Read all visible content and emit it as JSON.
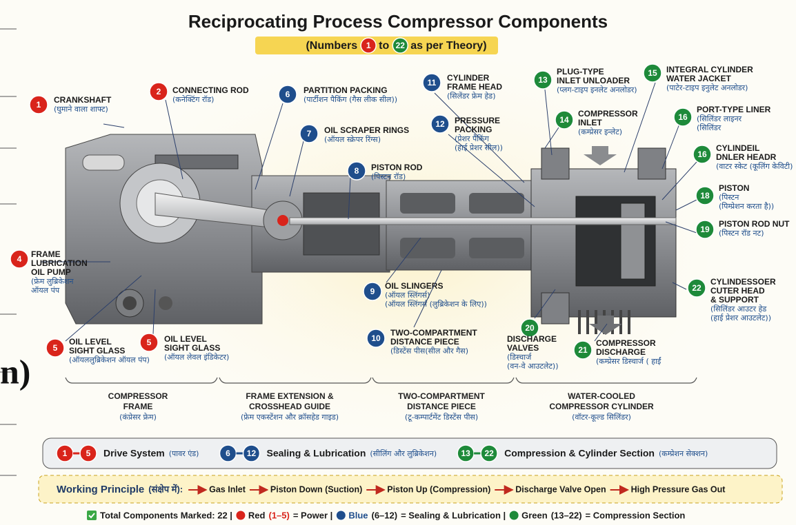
{
  "header": {
    "title": "Reciprocating Process Compressor Components",
    "subtitle": [
      {
        "text": "(Numbers"
      },
      {
        "badge": "1",
        "color": "#d9241b"
      },
      {
        "text": "to"
      },
      {
        "badge": "22",
        "color": "#1e8a3a"
      },
      {
        "text": "as per Theory)"
      }
    ]
  },
  "fragment": "n)",
  "components": [
    {
      "number": "1",
      "color": "#d9241b",
      "label": [
        "CRANKSHAFT"
      ],
      "hindi": [
        "(घुमाने वाला शाफ्ट)"
      ]
    },
    {
      "number": "2",
      "color": "#d9241b",
      "label": [
        "CONNECTING ROD"
      ],
      "hindi": [
        "(कनेक्टिंग रॉड)"
      ]
    },
    {
      "number": "4",
      "color": "#d9241b",
      "label": [
        "FRAME",
        "LUBRICATION",
        "OIL PUMP"
      ],
      "hindi": [
        "(फ्रेम लुब्रिकेशन",
        "ऑयल पंप"
      ]
    },
    {
      "number": "5",
      "color": "#d9241b",
      "label": [
        "OIL LEVEL",
        "SIGHT GLASS"
      ],
      "hindi": [
        "(ऑयललुब्रिकेशन ऑयल पंप)"
      ]
    },
    {
      "number": "5",
      "color": "#d9241b",
      "label": [
        "OIL LEVEL",
        "SIGHT GLASS"
      ],
      "hindi": [
        "(ऑयल लेवल इंडिकेटर)"
      ]
    },
    {
      "number": "6",
      "color": "#1f4e8c",
      "label": [
        "PARTITION PACKING"
      ],
      "hindi": [
        "(पार्टीशन पैकिंग (गैस लीक सील))"
      ]
    },
    {
      "number": "7",
      "color": "#1f4e8c",
      "label": [
        "OIL SCRAPER RINGS"
      ],
      "hindi": [
        "(ऑयल स्क्रेपर रिंग्स)"
      ]
    },
    {
      "number": "8",
      "color": "#1f4e8c",
      "label": [
        "PISTON ROD"
      ],
      "hindi": [
        "(पिस्टन रॉड)"
      ]
    },
    {
      "number": "9",
      "color": "#1f4e8c",
      "label": [
        "OIL SLINGERS"
      ],
      "hindi": [
        "(ऑयल स्लिंगर्स)",
        "(ऑयल स्लिंगर्स (लुब्रिकेशन के लिए))"
      ]
    },
    {
      "number": "10",
      "color": "#1f4e8c",
      "label": [
        "TWO-COMPARTMENT",
        "DISTANCE PIECE"
      ],
      "hindi": [
        "(डिस्टेंस पीस(सील और गैस)"
      ]
    },
    {
      "number": "11",
      "color": "#1f4e8c",
      "label": [
        "CYLINDER",
        "FRAME HEAD"
      ],
      "hindi": [
        "(सिलेंडर फ्रेम हेड)"
      ]
    },
    {
      "number": "12",
      "color": "#1f4e8c",
      "label": [
        "PRESSURE",
        "PACKING"
      ],
      "hindi": [
        "(प्रेशर पैकिंग",
        "(हाई प्रेशर सील))"
      ]
    },
    {
      "number": "13",
      "color": "#1e8a3a",
      "label": [
        "PLUG-TYPE",
        "INLET UNLOADER"
      ],
      "hindi": [
        "(प्लग-टाइप इनलेट अनलोडर)"
      ]
    },
    {
      "number": "14",
      "color": "#1e8a3a",
      "label": [
        "COMPRESSOR",
        "INLET"
      ],
      "hindi": [
        "(कम्प्रेसर इन्लेट)"
      ]
    },
    {
      "number": "15",
      "color": "#1e8a3a",
      "label": [
        "INTEGRAL CYLINDER",
        "WATER JACKET"
      ],
      "hindi": [
        "(पाटेर-टाइप इनुलेट अनलोडर)"
      ]
    },
    {
      "number": "16",
      "color": "#1e8a3a",
      "label": [
        "PORT-TYPE LINER"
      ],
      "hindi": [
        "(सिलिंडर लाइनर",
        "(सिलिंडर"
      ]
    },
    {
      "number": "16",
      "color": "#1e8a3a",
      "label": [
        "CYLINDEIL",
        "DNLER HEADR"
      ],
      "hindi": [
        "(वाटर स्केट (कूलिंग केविटी)"
      ]
    },
    {
      "number": "18",
      "color": "#1e8a3a",
      "label": [
        "PISTON"
      ],
      "hindi": [
        "(पिस्टन",
        "(पिम्प्रेशन करता है))"
      ]
    },
    {
      "number": "19",
      "color": "#1e8a3a",
      "label": [
        "PISTON ROD NUT"
      ],
      "hindi": [
        "(पिस्टन रॉड नट)"
      ]
    },
    {
      "number": "20",
      "color": "#1e8a3a",
      "label": [
        "DISCHARGE",
        "VALVES"
      ],
      "hindi": [
        "(डिस्चार्ज",
        "(वन-वे आउटलेट))"
      ]
    },
    {
      "number": "21",
      "color": "#1e8a3a",
      "label": [
        "COMPRESSOR",
        "DISCHARGE"
      ],
      "hindi": [
        "(कम्प्रेसर डिस्चार्ज ( हाईं"
      ]
    },
    {
      "number": "22",
      "color": "#1e8a3a",
      "label": [
        "CYLINDESSOER",
        "CUTER HEAD",
        "& SUPPORT"
      ],
      "hindi": [
        "(सिलिंडर आउटर हेड",
        "(हाई प्रेशर आउटलेट))"
      ]
    }
  ],
  "sections": [
    {
      "label": [
        "COMPRESSOR",
        "FRAME"
      ],
      "hindi": "(कंप्रेसर फ्रेम)"
    },
    {
      "label": [
        "FRAME EXTENSION &",
        "CROSSHEAD GUIDE"
      ],
      "hindi": "(फ्रेम एकस्टेंशन और क्रॉसहेड गाइड)"
    },
    {
      "label": [
        "TWO-COMPARTMENT",
        "DISTANCE PIECE"
      ],
      "hindi": "(टू-कम्पार्टमेंट डिस्टेंस पीस)"
    },
    {
      "label": [
        "WATER-COOLED",
        "COMPRESSOR CYLINDER"
      ],
      "hindi": "(वॉटर-कूल्ड सिलिंडर)"
    }
  ],
  "legend": [
    {
      "from": "1",
      "to": "5",
      "color": "#d9241b",
      "label": "Drive System",
      "hindi": "(पावर एंड)"
    },
    {
      "from": "6",
      "to": "12",
      "color": "#1f4e8c",
      "label": "Sealing & Lubrication",
      "hindi": "(सीलिंग और लुब्रिकेशन)"
    },
    {
      "from": "13",
      "to": "22",
      "color": "#1e8a3a",
      "label": "Compression & Cylinder Section",
      "hindi": "(कम्प्रेशन सेक्शन)"
    }
  ],
  "working_principle": {
    "label": "Working Principle",
    "hindi": "(संक्षेप में):",
    "steps": [
      "Gas Inlet",
      "Piston Down (Suction)",
      "Piston Up (Compression)",
      "Discharge Valve Open",
      "High Pressure Gas Out"
    ]
  },
  "footer": [
    {
      "text": "Total Components Marked: 22  |",
      "check": "#3aa845"
    },
    {
      "text": "Red",
      "dot": "#d9241b"
    },
    {
      "text": "(1–5)",
      "color": "#d9241b"
    },
    {
      "text": "= Power |"
    },
    {
      "text": "Blue",
      "dot": "#1f4e8c",
      "color": "#1f4e8c"
    },
    {
      "text": "(6–12)"
    },
    {
      "text": "= Sealing & Lubrication |"
    },
    {
      "text": "Green",
      "dot": "#1e8a3a"
    },
    {
      "text": "(13–22)"
    },
    {
      "text": "= Compression Section"
    }
  ]
}
